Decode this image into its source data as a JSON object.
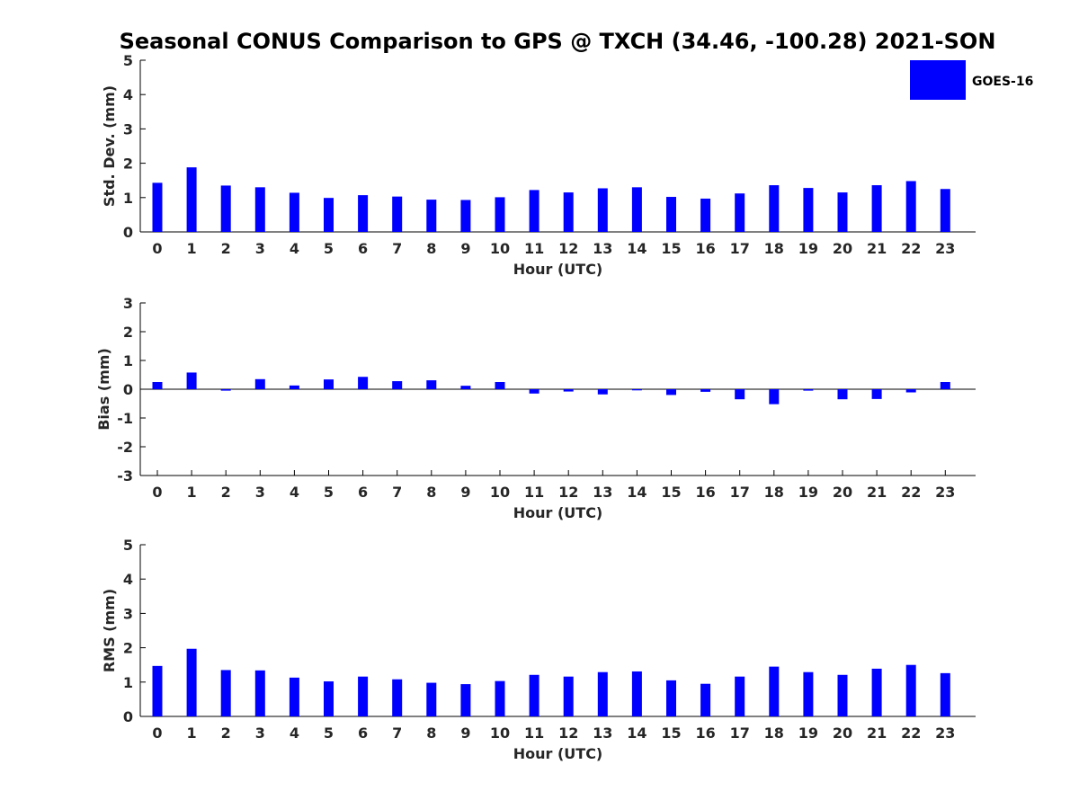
{
  "title": "Seasonal CONUS Comparison to GPS @ TXCH (34.46, -100.28) 2021-SON",
  "legend": {
    "label": "GOES-16",
    "color": "#0000ff",
    "placement": "top-right"
  },
  "chart_data": [
    {
      "type": "bar",
      "ylabel": "Std. Dev. (mm)",
      "xlabel": "Hour (UTC)",
      "ylim": [
        0,
        5
      ],
      "yticks": [
        0,
        1,
        2,
        3,
        4,
        5
      ],
      "categories": [
        "0",
        "1",
        "2",
        "3",
        "4",
        "5",
        "6",
        "7",
        "8",
        "9",
        "10",
        "11",
        "12",
        "13",
        "14",
        "15",
        "16",
        "17",
        "18",
        "19",
        "20",
        "21",
        "22",
        "23"
      ],
      "series": [
        {
          "name": "GOES-16",
          "color": "#0000ff",
          "values": [
            1.43,
            1.88,
            1.35,
            1.3,
            1.14,
            0.99,
            1.07,
            1.03,
            0.94,
            0.93,
            1.01,
            1.22,
            1.15,
            1.27,
            1.3,
            1.02,
            0.97,
            1.12,
            1.36,
            1.28,
            1.15,
            1.36,
            1.48,
            1.25
          ]
        }
      ]
    },
    {
      "type": "bar",
      "ylabel": "Bias (mm)",
      "xlabel": "Hour (UTC)",
      "ylim": [
        -3,
        3
      ],
      "yticks": [
        -3,
        -2,
        -1,
        0,
        1,
        2,
        3
      ],
      "categories": [
        "0",
        "1",
        "2",
        "3",
        "4",
        "5",
        "6",
        "7",
        "8",
        "9",
        "10",
        "11",
        "12",
        "13",
        "14",
        "15",
        "16",
        "17",
        "18",
        "19",
        "20",
        "21",
        "22",
        "23"
      ],
      "series": [
        {
          "name": "GOES-16",
          "color": "#0000ff",
          "values": [
            0.25,
            0.58,
            -0.05,
            0.35,
            0.13,
            0.34,
            0.43,
            0.28,
            0.31,
            0.12,
            0.25,
            -0.15,
            -0.08,
            -0.18,
            -0.04,
            -0.2,
            -0.09,
            -0.35,
            -0.52,
            -0.05,
            -0.35,
            -0.34,
            -0.11,
            0.25
          ]
        }
      ]
    },
    {
      "type": "bar",
      "ylabel": "RMS (mm)",
      "xlabel": "Hour (UTC)",
      "ylim": [
        0,
        5
      ],
      "yticks": [
        0,
        1,
        2,
        3,
        4,
        5
      ],
      "categories": [
        "0",
        "1",
        "2",
        "3",
        "4",
        "5",
        "6",
        "7",
        "8",
        "9",
        "10",
        "11",
        "12",
        "13",
        "14",
        "15",
        "16",
        "17",
        "18",
        "19",
        "20",
        "21",
        "22",
        "23"
      ],
      "series": [
        {
          "name": "GOES-16",
          "color": "#0000ff",
          "values": [
            1.47,
            1.97,
            1.35,
            1.34,
            1.13,
            1.02,
            1.16,
            1.08,
            0.98,
            0.94,
            1.03,
            1.21,
            1.16,
            1.29,
            1.31,
            1.05,
            0.95,
            1.16,
            1.45,
            1.29,
            1.21,
            1.39,
            1.5,
            1.26
          ]
        }
      ]
    }
  ]
}
